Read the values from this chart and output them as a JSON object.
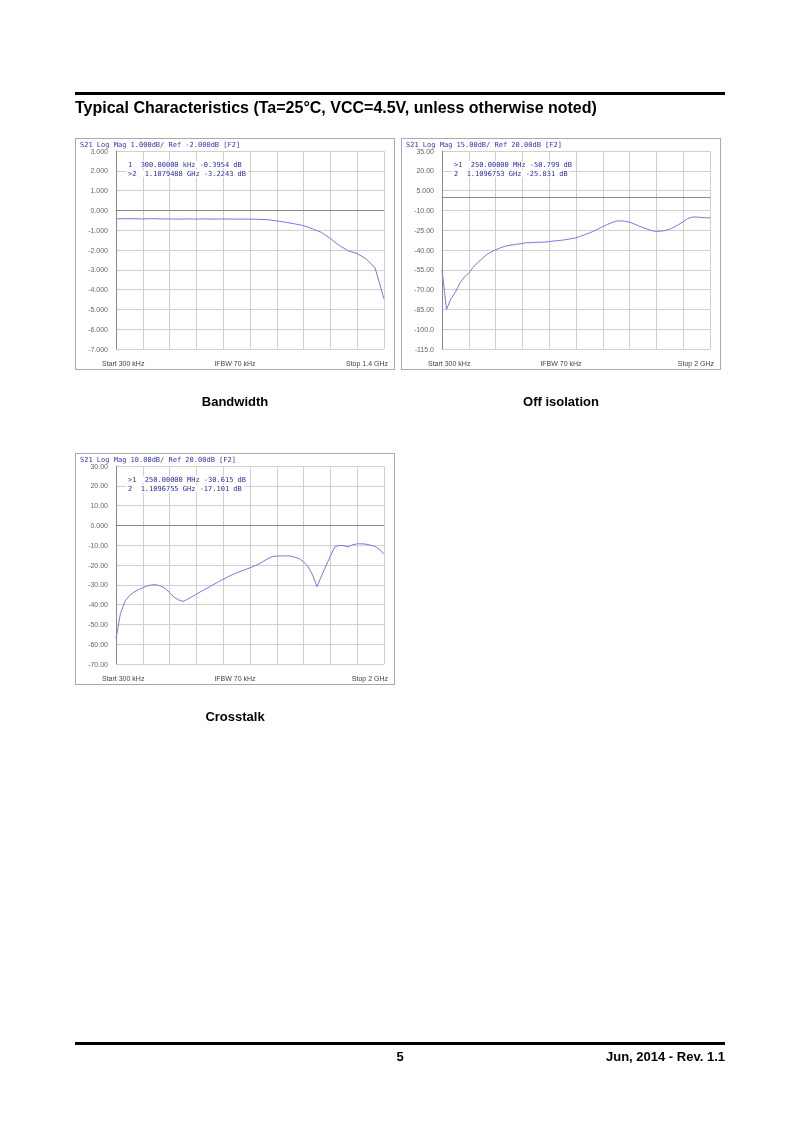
{
  "chart_data": [
    {
      "type": "line",
      "title": "Bandwidth",
      "annotations": [
        "S21 Log Mag 1.000dB/ Ref -2.000dB [F2]",
        "1  300.00000 kHz -0.3954 dB",
        ">2  1.1079488 GHz -3.2243 dB",
        "Start 300 kHz",
        "IFBW 70 kHz",
        "Stop 1.4 GHz"
      ],
      "categories": [
        null,
        null,
        null,
        null,
        null,
        null,
        null,
        null,
        null,
        null,
        null,
        null,
        null,
        null,
        null,
        null,
        null,
        null,
        null,
        null,
        null,
        null,
        null,
        null,
        null,
        null,
        null,
        null,
        null,
        null,
        null
      ],
      "series": [
        {
          "color": "#7878e0",
          "values": [
            -0.43,
            -0.42,
            -0.42,
            -0.43,
            -0.42,
            -0.43,
            -0.43,
            -0.44,
            -0.43,
            -0.44,
            -0.43,
            -0.44,
            -0.43,
            -0.44,
            -0.44,
            -0.44,
            -0.45,
            -0.47,
            -0.53,
            -0.6,
            -0.68,
            -0.77,
            -0.93,
            -1.11,
            -1.42,
            -1.77,
            -2.04,
            -2.18,
            -2.45,
            -2.9,
            -4.47
          ]
        }
      ],
      "ylim": [
        -7,
        3
      ],
      "yticks": [
        {
          "value": 3,
          "label": "3.000"
        },
        {
          "value": 2,
          "label": "2.000"
        },
        {
          "value": 1,
          "label": "1.000"
        },
        {
          "value": 0,
          "label": "0.000"
        },
        {
          "value": -1,
          "label": "-1.000"
        },
        {
          "value": -2,
          "label": "-2.000"
        },
        {
          "value": -3,
          "label": "-3.000"
        },
        {
          "value": -4,
          "label": "-4.000"
        },
        {
          "value": -5,
          "label": "-5.000"
        },
        {
          "value": -6,
          "label": "-6.000"
        },
        {
          "value": -7,
          "label": "-7.000"
        }
      ],
      "tick_labels": "y",
      "grid": true,
      "marker": "none",
      "line_style": "solid"
    },
    {
      "type": "line",
      "title": "Off isolation",
      "annotations": [
        "S21 Log Mag 15.00dB/ Ref 20.00dB [F2]",
        ">1  250.00000 MHz -50.799 dB",
        "2  1.1096753 GHz -25.831 dB",
        "Start 300 kHz",
        "IFBW 70 kHz",
        "Stop 2 GHz"
      ],
      "categories": [
        null,
        null,
        null,
        null,
        null,
        null,
        null,
        null,
        null,
        null,
        null,
        null,
        null,
        null,
        null,
        null,
        null,
        null,
        null,
        null,
        null,
        null,
        null,
        null,
        null,
        null,
        null,
        null,
        null,
        null,
        null,
        null,
        null,
        null,
        null,
        null,
        null,
        null,
        null,
        null,
        null,
        null,
        null,
        null,
        null,
        null,
        null,
        null,
        null,
        null,
        null,
        null,
        null,
        null,
        null,
        null,
        null,
        null,
        null,
        null,
        null
      ],
      "series": [
        {
          "color": "#7878e0",
          "values": [
            -55,
            -85,
            -77,
            -72,
            -65,
            -60.5,
            -57.5,
            -53,
            -49.5,
            -46.5,
            -43.5,
            -41.5,
            -39.8,
            -38.5,
            -37.3,
            -36.5,
            -36,
            -35.5,
            -35,
            -34.5,
            -34.4,
            -34.2,
            -34.1,
            -34,
            -33.6,
            -33.2,
            -32.9,
            -32.5,
            -32,
            -31.4,
            -30.8,
            -29.6,
            -28.3,
            -27.1,
            -25.7,
            -24,
            -22.2,
            -20.7,
            -19.3,
            -18.1,
            -17.9,
            -18.2,
            -18.9,
            -20.2,
            -21.7,
            -23,
            -24.3,
            -25.4,
            -25.9,
            -25.7,
            -25.3,
            -24.3,
            -22.5,
            -20.7,
            -18.6,
            -16.2,
            -15.1,
            -15,
            -15.3,
            -15.6,
            -15.6
          ]
        }
      ],
      "ylim": [
        -115,
        35
      ],
      "yticks": [
        {
          "value": 35,
          "label": "35.00"
        },
        {
          "value": 20,
          "label": "20.00"
        },
        {
          "value": 5,
          "label": "5.000"
        },
        {
          "value": -10,
          "label": "-10.00"
        },
        {
          "value": -25,
          "label": "-25.00"
        },
        {
          "value": -40,
          "label": "-40.00"
        },
        {
          "value": -55,
          "label": "-55.00"
        },
        {
          "value": -70,
          "label": "-70.00"
        },
        {
          "value": -85,
          "label": "-85.00"
        },
        {
          "value": -100,
          "label": "-100.0"
        },
        {
          "value": -115,
          "label": "-115.0"
        }
      ],
      "tick_labels": "y",
      "grid": true,
      "marker": "none",
      "line_style": "solid"
    },
    {
      "type": "line",
      "title": "Crosstalk",
      "annotations": [
        "S21 Log Mag 10.00dB/ Ref 20.00dB [F2]",
        ">1  250.00000 MHz -30.615 dB",
        "2  1.1096755 GHz -17.101 dB",
        "Start 300 kHz",
        "IFBW 70 kHz",
        "Stop 2 GHz"
      ],
      "categories": [
        null,
        null,
        null,
        null,
        null,
        null,
        null,
        null,
        null,
        null,
        null,
        null,
        null,
        null,
        null,
        null,
        null,
        null,
        null,
        null,
        null,
        null,
        null,
        null,
        null,
        null,
        null,
        null,
        null,
        null,
        null,
        null,
        null,
        null,
        null,
        null,
        null,
        null,
        null,
        null,
        null,
        null,
        null,
        null,
        null,
        null,
        null,
        null,
        null,
        null,
        null,
        null,
        null,
        null,
        null,
        null,
        null,
        null,
        null,
        null,
        null
      ],
      "series": [
        {
          "color": "#7878e0",
          "values": [
            -57,
            -44.5,
            -38.3,
            -35.5,
            -33.7,
            -32.5,
            -31.5,
            -30.5,
            -30,
            -30,
            -30.6,
            -31.8,
            -34,
            -36.3,
            -37.6,
            -38.4,
            -37.3,
            -36,
            -34.8,
            -33.4,
            -32.2,
            -30.9,
            -29.6,
            -28.4,
            -27.2,
            -26.1,
            -24.9,
            -24,
            -23.1,
            -22.3,
            -21.4,
            -20.5,
            -19.5,
            -18.1,
            -16.8,
            -15.7,
            -15.5,
            -15.4,
            -15.4,
            -15.5,
            -16,
            -16.8,
            -18.4,
            -20.8,
            -25,
            -31,
            -25.5,
            -20.5,
            -15.5,
            -10.8,
            -10.1,
            -10.3,
            -10.8,
            -9.8,
            -9.3,
            -9.3,
            -9.5,
            -10,
            -10.6,
            -12.2,
            -14.6
          ]
        }
      ],
      "ylim": [
        -70,
        30
      ],
      "yticks": [
        {
          "value": 30,
          "label": "30.00"
        },
        {
          "value": 20,
          "label": "20.00"
        },
        {
          "value": 10,
          "label": "10.00"
        },
        {
          "value": 0,
          "label": "0.000"
        },
        {
          "value": -10,
          "label": "-10.00"
        },
        {
          "value": -20,
          "label": "-20.00"
        },
        {
          "value": -30,
          "label": "-30.00"
        },
        {
          "value": -40,
          "label": "-40.00"
        },
        {
          "value": -50,
          "label": "-50.00"
        },
        {
          "value": -60,
          "label": "-60.00"
        },
        {
          "value": -70,
          "label": "-70.00"
        }
      ],
      "tick_labels": "y",
      "grid": true,
      "marker": "none",
      "line_style": "solid"
    },
    {
      "type": "other",
      "title": "Typical Characteristics (Ta=25°C, VCC=4.5V, unless otherwise noted)",
      "annotations": [
        "5",
        "Jun, 2014 - Rev. 1.1"
      ]
    }
  ]
}
